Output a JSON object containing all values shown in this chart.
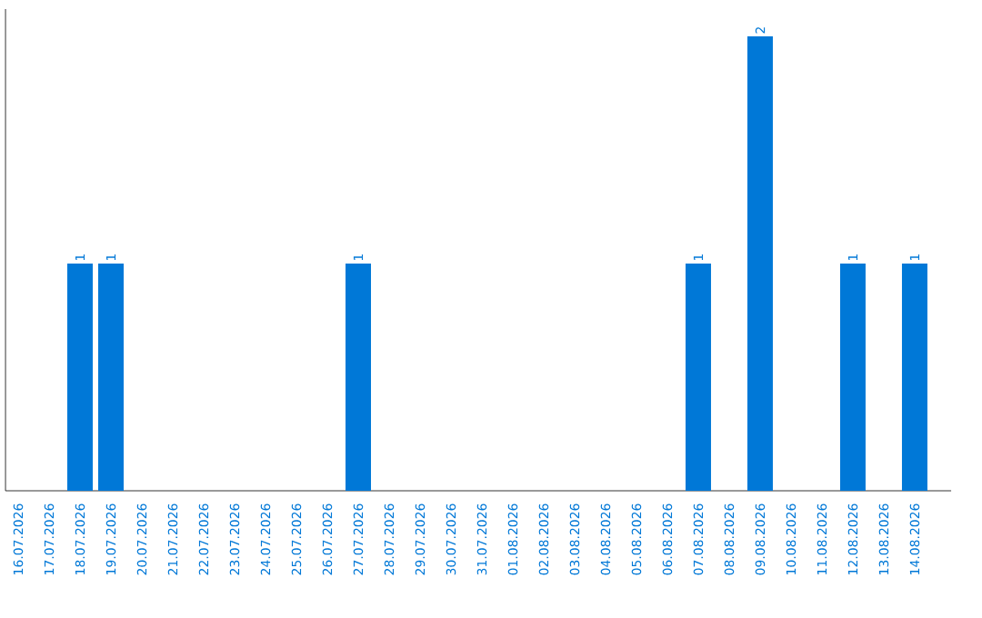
{
  "chart_data": {
    "type": "bar",
    "categories": [
      "16.07.2026",
      "17.07.2026",
      "18.07.2026",
      "19.07.2026",
      "20.07.2026",
      "21.07.2026",
      "22.07.2026",
      "23.07.2026",
      "24.07.2026",
      "25.07.2026",
      "26.07.2026",
      "27.07.2026",
      "28.07.2026",
      "29.07.2026",
      "30.07.2026",
      "31.07.2026",
      "01.08.2026",
      "02.08.2026",
      "03.08.2026",
      "04.08.2026",
      "05.08.2026",
      "06.08.2026",
      "07.08.2026",
      "08.08.2026",
      "09.08.2026",
      "10.08.2026",
      "11.08.2026",
      "12.08.2026",
      "13.08.2026",
      "14.08.2026"
    ],
    "values": [
      0,
      0,
      1,
      1,
      0,
      0,
      0,
      0,
      0,
      0,
      0,
      1,
      0,
      0,
      0,
      0,
      0,
      0,
      0,
      0,
      0,
      0,
      1,
      0,
      2,
      0,
      0,
      1,
      0,
      1
    ],
    "value_labels": [
      null,
      null,
      "1",
      "1",
      null,
      null,
      null,
      null,
      null,
      null,
      null,
      "1",
      null,
      null,
      null,
      null,
      null,
      null,
      null,
      null,
      null,
      null,
      "1",
      null,
      "2",
      null,
      null,
      "1",
      null,
      "1"
    ],
    "color": "#0078d7",
    "grid": false,
    "tick_labels": "x"
  }
}
